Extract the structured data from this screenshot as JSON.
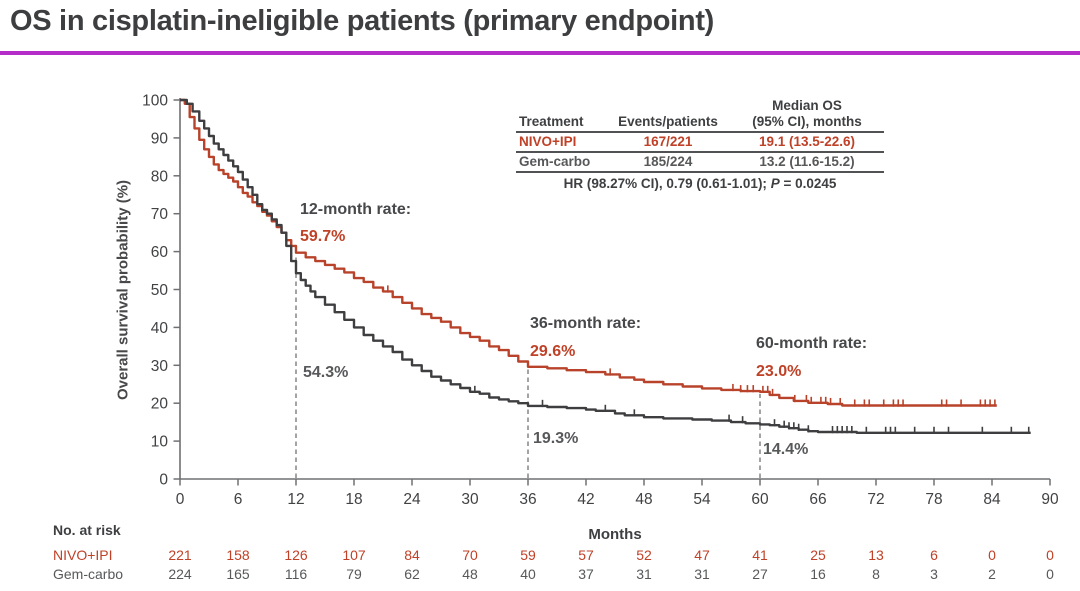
{
  "title": "OS in cisplatin-ineligible patients (primary endpoint)",
  "colors": {
    "nivo": "#b8432a",
    "gem": "#3e3e40",
    "nivo_text": "#bf4127",
    "gem_text": "#57585a",
    "rule": "#b52dc8",
    "axis": "#6f7072",
    "dashed": "#7b7c7e"
  },
  "stats_table": {
    "headers": {
      "treatment": "Treatment",
      "events": "Events/patients",
      "median_line1": "Median OS",
      "median_line2": "(95% CI), months"
    },
    "rows": [
      {
        "treatment": "NIVO+IPI",
        "events": "167/221",
        "median": "19.1 (13.5-22.6)",
        "color": "nivo_text"
      },
      {
        "treatment": "Gem-carbo",
        "events": "185/224",
        "median": "13.2 (11.6-15.2)",
        "color": "gem_text"
      }
    ],
    "footnote_prefix": "HR (98.27% CI), 0.79 (0.61-1.01); ",
    "footnote_italic": "P",
    "footnote_suffix": " = 0.0245"
  },
  "annotations": {
    "m12": {
      "title": "12-month rate:",
      "nivo_value": "59.7%",
      "gem_value": "54.3%"
    },
    "m36": {
      "title": "36-month rate:",
      "nivo_value": "29.6%",
      "gem_value": "19.3%"
    },
    "m60": {
      "title": "60-month rate:",
      "nivo_value": "23.0%",
      "gem_value": "14.4%"
    }
  },
  "risk_table": {
    "heading": "No. at risk",
    "timepoints": [
      0,
      6,
      12,
      18,
      24,
      30,
      36,
      42,
      48,
      54,
      60,
      66,
      72,
      78,
      84,
      90
    ],
    "rows": [
      {
        "label": "NIVO+IPI",
        "color": "nivo_text",
        "values": [
          221,
          158,
          126,
          107,
          84,
          70,
          59,
          57,
          52,
          47,
          41,
          25,
          13,
          6,
          0,
          0
        ]
      },
      {
        "label": "Gem-carbo",
        "color": "gem_text",
        "values": [
          224,
          165,
          116,
          79,
          62,
          48,
          40,
          37,
          31,
          31,
          27,
          16,
          8,
          3,
          2,
          0
        ]
      }
    ]
  },
  "chart_data": {
    "type": "line",
    "subtype": "kaplan-meier-step",
    "title": "OS in cisplatin-ineligible patients (primary endpoint)",
    "xlabel": "Months",
    "ylabel": "Overall survival probability (%)",
    "xlim": [
      0,
      90
    ],
    "ylim": [
      0,
      100
    ],
    "xticks": [
      0,
      6,
      12,
      18,
      24,
      30,
      36,
      42,
      48,
      54,
      60,
      66,
      72,
      78,
      84,
      90
    ],
    "yticks": [
      0,
      10,
      20,
      30,
      40,
      50,
      60,
      70,
      80,
      90,
      100
    ],
    "grid": false,
    "legend_position": "none",
    "milestone_months": [
      12,
      36,
      60
    ],
    "milestone_rates": {
      "NIVO+IPI": {
        "12": 59.7,
        "36": 29.6,
        "60": 23.0
      },
      "Gem-carbo": {
        "12": 54.3,
        "36": 19.3,
        "60": 14.4
      }
    },
    "series": [
      {
        "name": "NIVO+IPI",
        "color": "#b8432a",
        "points": [
          [
            0,
            100
          ],
          [
            0.5,
            99
          ],
          [
            1,
            95.5
          ],
          [
            1.5,
            92.5
          ],
          [
            2,
            89.5
          ],
          [
            2.5,
            87
          ],
          [
            3,
            85
          ],
          [
            3.5,
            83
          ],
          [
            4,
            81.5
          ],
          [
            4.5,
            80.5
          ],
          [
            5,
            79.5
          ],
          [
            5.5,
            78.5
          ],
          [
            6,
            77
          ],
          [
            6.5,
            75.5
          ],
          [
            7,
            74.5
          ],
          [
            7.5,
            73
          ],
          [
            8,
            72
          ],
          [
            8.5,
            70.5
          ],
          [
            9,
            69.5
          ],
          [
            9.5,
            68
          ],
          [
            10,
            66.5
          ],
          [
            10.5,
            65
          ],
          [
            11,
            63
          ],
          [
            11.5,
            61.5
          ],
          [
            12,
            59.7
          ],
          [
            13,
            58.5
          ],
          [
            14,
            57.5
          ],
          [
            15,
            56.5
          ],
          [
            16,
            55.5
          ],
          [
            17,
            54.5
          ],
          [
            18,
            53
          ],
          [
            19,
            52
          ],
          [
            20,
            50.5
          ],
          [
            21,
            49.5
          ],
          [
            22,
            48
          ],
          [
            23,
            46.5
          ],
          [
            24,
            45
          ],
          [
            25,
            43.5
          ],
          [
            26,
            42.5
          ],
          [
            27,
            41.5
          ],
          [
            28,
            40
          ],
          [
            29,
            38.5
          ],
          [
            30,
            37.5
          ],
          [
            31,
            36.5
          ],
          [
            32,
            35
          ],
          [
            33,
            34
          ],
          [
            34,
            32.5
          ],
          [
            35,
            31
          ],
          [
            36,
            29.6
          ],
          [
            38,
            29.2
          ],
          [
            40,
            28.7
          ],
          [
            42,
            28.2
          ],
          [
            44,
            27.6
          ],
          [
            45.5,
            26.8
          ],
          [
            47,
            26.2
          ],
          [
            48,
            25.6
          ],
          [
            50,
            25
          ],
          [
            52,
            24.4
          ],
          [
            54,
            23.9
          ],
          [
            56,
            23.5
          ],
          [
            58,
            23.2
          ],
          [
            60,
            23
          ],
          [
            61,
            22.2
          ],
          [
            62,
            21.4
          ],
          [
            63.5,
            20.6
          ],
          [
            65,
            20.1
          ],
          [
            67,
            19.8
          ],
          [
            68.5,
            19.4
          ],
          [
            84.5,
            19.4
          ]
        ],
        "censor_marks": [
          21.5,
          44.5,
          57.2,
          58,
          58.7,
          59.3,
          60.3,
          60.8,
          61.3,
          63.6,
          64.8,
          65.3,
          66.3,
          66.8,
          67.3,
          68.3,
          69.8,
          70.8,
          71.3,
          72.8,
          73.8,
          74.3,
          74.8,
          78.8,
          79.3,
          80.8,
          82.8,
          83.3,
          83.8,
          84.3
        ]
      },
      {
        "name": "Gem-carbo",
        "color": "#3e3e40",
        "points": [
          [
            0,
            100
          ],
          [
            0.7,
            99
          ],
          [
            1.3,
            97
          ],
          [
            2,
            94.5
          ],
          [
            2.5,
            92.5
          ],
          [
            3,
            90.5
          ],
          [
            3.5,
            88.5
          ],
          [
            4,
            87
          ],
          [
            4.5,
            85.5
          ],
          [
            5,
            84
          ],
          [
            5.5,
            82.5
          ],
          [
            6,
            81
          ],
          [
            6.5,
            79
          ],
          [
            7,
            77
          ],
          [
            7.5,
            75
          ],
          [
            8,
            72.5
          ],
          [
            8.5,
            71
          ],
          [
            9,
            70
          ],
          [
            9.5,
            68.5
          ],
          [
            10,
            67
          ],
          [
            10.5,
            65
          ],
          [
            11,
            61.5
          ],
          [
            11.5,
            57.5
          ],
          [
            12,
            54.3
          ],
          [
            12.5,
            52.5
          ],
          [
            13,
            51
          ],
          [
            13.5,
            49.5
          ],
          [
            14,
            48
          ],
          [
            15,
            46
          ],
          [
            16,
            44
          ],
          [
            17,
            42
          ],
          [
            18,
            40
          ],
          [
            19,
            38
          ],
          [
            20,
            36.5
          ],
          [
            21,
            35
          ],
          [
            22,
            33.5
          ],
          [
            23,
            31.5
          ],
          [
            24,
            30
          ],
          [
            25,
            28.5
          ],
          [
            26,
            27
          ],
          [
            27,
            26
          ],
          [
            28,
            25
          ],
          [
            29,
            24
          ],
          [
            30,
            23
          ],
          [
            31,
            22.5
          ],
          [
            32,
            21.5
          ],
          [
            33,
            21
          ],
          [
            34,
            20.5
          ],
          [
            35,
            20
          ],
          [
            36,
            19.3
          ],
          [
            38,
            19
          ],
          [
            40,
            18.7
          ],
          [
            42,
            18.3
          ],
          [
            43,
            18
          ],
          [
            45,
            17.3
          ],
          [
            46,
            16.8
          ],
          [
            48,
            16.3
          ],
          [
            50,
            16
          ],
          [
            53,
            15.7
          ],
          [
            55,
            15.4
          ],
          [
            57,
            15
          ],
          [
            58.5,
            14.7
          ],
          [
            60,
            14.4
          ],
          [
            61,
            14.2
          ],
          [
            62,
            13.8
          ],
          [
            63,
            13.4
          ],
          [
            64,
            13
          ],
          [
            65,
            12.6
          ],
          [
            66,
            12.4
          ],
          [
            70,
            12.2
          ],
          [
            88,
            12.2
          ]
        ],
        "censor_marks": [
          30.5,
          37.5,
          44,
          47,
          56.8,
          58.2,
          61.5,
          62.5,
          63,
          63.5,
          64,
          65,
          67.5,
          68,
          68.5,
          69,
          69.5,
          71,
          73,
          73.5,
          74,
          76,
          78,
          79.5,
          83,
          86,
          87.8
        ]
      }
    ]
  }
}
